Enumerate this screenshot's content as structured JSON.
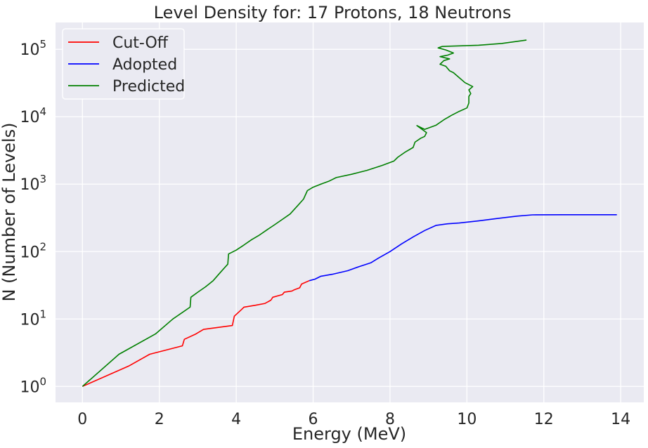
{
  "chart_data": {
    "type": "line",
    "title": "Level Density for: 17 Protons, 18 Neutrons",
    "xlabel": "Energy (MeV)",
    "ylabel": "N (Number of Levels)",
    "xlim": [
      -0.7,
      14.6
    ],
    "ylim": [
      0.58,
      250000
    ],
    "yscale": "log",
    "grid": true,
    "legend_position": "top-left",
    "x_ticks": [
      0,
      2,
      4,
      6,
      8,
      10,
      12,
      14
    ],
    "x_tick_labels": [
      "0",
      "2",
      "4",
      "6",
      "8",
      "10",
      "12",
      "14"
    ],
    "y_ticks": [
      1,
      10,
      100,
      1000,
      10000,
      100000
    ],
    "y_tick_labels": [
      {
        "base": "10",
        "exp": "0"
      },
      {
        "base": "10",
        "exp": "1"
      },
      {
        "base": "10",
        "exp": "2"
      },
      {
        "base": "10",
        "exp": "3"
      },
      {
        "base": "10",
        "exp": "4"
      },
      {
        "base": "10",
        "exp": "5"
      }
    ],
    "series": [
      {
        "name": "Cut-Off",
        "color": "#ff0000",
        "points": [
          [
            0,
            1
          ],
          [
            1.2,
            2
          ],
          [
            1.75,
            3
          ],
          [
            2.6,
            4
          ],
          [
            2.65,
            5
          ],
          [
            2.95,
            6
          ],
          [
            3.15,
            7
          ],
          [
            3.9,
            8
          ],
          [
            3.95,
            11
          ],
          [
            4.15,
            14
          ],
          [
            4.2,
            15
          ],
          [
            4.5,
            16
          ],
          [
            4.75,
            17
          ],
          [
            4.9,
            19
          ],
          [
            4.95,
            21
          ],
          [
            5.2,
            23
          ],
          [
            5.25,
            25
          ],
          [
            5.45,
            26
          ],
          [
            5.5,
            27
          ],
          [
            5.65,
            29
          ],
          [
            5.7,
            33
          ],
          [
            5.9,
            37
          ]
        ]
      },
      {
        "name": "Adopted",
        "color": "#0000ff",
        "points": [
          [
            5.9,
            37
          ],
          [
            6.05,
            39
          ],
          [
            6.2,
            43
          ],
          [
            6.5,
            46
          ],
          [
            6.9,
            52
          ],
          [
            7.2,
            60
          ],
          [
            7.5,
            68
          ],
          [
            7.7,
            80
          ],
          [
            8.0,
            100
          ],
          [
            8.3,
            130
          ],
          [
            8.6,
            165
          ],
          [
            8.9,
            205
          ],
          [
            9.2,
            245
          ],
          [
            9.5,
            258
          ],
          [
            9.8,
            265
          ],
          [
            10.3,
            285
          ],
          [
            10.8,
            310
          ],
          [
            11.3,
            335
          ],
          [
            11.7,
            350
          ],
          [
            12.5,
            352
          ],
          [
            13.9,
            352
          ]
        ]
      },
      {
        "name": "Predicted",
        "color": "#008000",
        "points": [
          [
            0,
            1
          ],
          [
            0.95,
            3
          ],
          [
            1.9,
            6
          ],
          [
            2.35,
            10
          ],
          [
            2.8,
            15
          ],
          [
            2.82,
            21
          ],
          [
            3.0,
            25
          ],
          [
            3.2,
            30
          ],
          [
            3.4,
            37
          ],
          [
            3.6,
            50
          ],
          [
            3.78,
            65
          ],
          [
            3.8,
            92
          ],
          [
            4.0,
            105
          ],
          [
            4.2,
            125
          ],
          [
            4.4,
            150
          ],
          [
            4.6,
            175
          ],
          [
            4.8,
            210
          ],
          [
            5.0,
            250
          ],
          [
            5.2,
            300
          ],
          [
            5.4,
            360
          ],
          [
            5.6,
            480
          ],
          [
            5.75,
            600
          ],
          [
            5.85,
            800
          ],
          [
            6.0,
            900
          ],
          [
            6.2,
            1000
          ],
          [
            6.4,
            1100
          ],
          [
            6.6,
            1250
          ],
          [
            7.0,
            1400
          ],
          [
            7.4,
            1600
          ],
          [
            7.8,
            1900
          ],
          [
            8.1,
            2200
          ],
          [
            8.2,
            2500
          ],
          [
            8.4,
            3000
          ],
          [
            8.6,
            3500
          ],
          [
            8.65,
            4200
          ],
          [
            8.8,
            4800
          ],
          [
            8.9,
            5100
          ],
          [
            8.95,
            5800
          ],
          [
            8.7,
            7400
          ],
          [
            8.9,
            6500
          ],
          [
            9.2,
            7500
          ],
          [
            9.4,
            9000
          ],
          [
            9.6,
            10500
          ],
          [
            9.8,
            12000
          ],
          [
            10.0,
            13500
          ],
          [
            10.05,
            16000
          ],
          [
            10.05,
            20000
          ],
          [
            10.1,
            22000
          ],
          [
            10.05,
            25000
          ],
          [
            10.15,
            28000
          ],
          [
            9.95,
            32000
          ],
          [
            9.8,
            38000
          ],
          [
            9.65,
            45000
          ],
          [
            9.55,
            48000
          ],
          [
            9.45,
            56000
          ],
          [
            9.3,
            60000
          ],
          [
            9.4,
            68000
          ],
          [
            9.55,
            72000
          ],
          [
            9.3,
            78000
          ],
          [
            9.5,
            82000
          ],
          [
            9.65,
            88000
          ],
          [
            9.45,
            98000
          ],
          [
            9.25,
            105000
          ],
          [
            9.35,
            110000
          ],
          [
            10.3,
            115000
          ],
          [
            10.9,
            122000
          ],
          [
            11.55,
            137000
          ]
        ]
      }
    ]
  }
}
